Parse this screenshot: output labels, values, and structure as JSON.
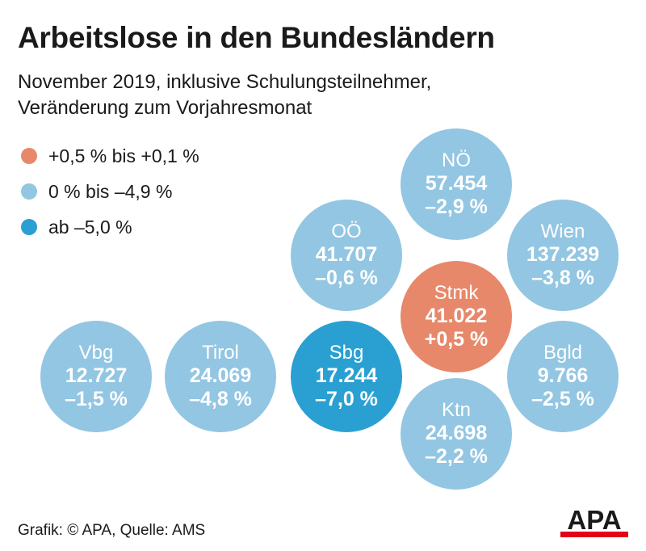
{
  "title": "Arbeitslose in den Bundesländern",
  "subtitle": {
    "line1": "November 2019, inklusive Schulungsteilnehmer,",
    "line2": "Veränderung zum Vorjahresmonat"
  },
  "legend": [
    {
      "label": "+0,5 % bis +0,1 %",
      "color": "#e8886b"
    },
    {
      "label": "0 % bis –4,9 %",
      "color": "#93c6e2"
    },
    {
      "label": "ab –5,0 %",
      "color": "#2aa0d2"
    }
  ],
  "chart_data": {
    "type": "bubble",
    "title": "Arbeitslose in den Bundesländern",
    "subtitle": "November 2019, inklusive Schulungsteilnehmer, Veränderung zum Vorjahresmonat",
    "series": [
      {
        "name": "NÖ",
        "value": 57454,
        "value_label": "57.454",
        "change": -2.9,
        "change_label": "–2,9 %",
        "category": "0 % bis –4,9 %"
      },
      {
        "name": "OÖ",
        "value": 41707,
        "value_label": "41.707",
        "change": -0.6,
        "change_label": "–0,6 %",
        "category": "0 % bis –4,9 %"
      },
      {
        "name": "Wien",
        "value": 137239,
        "value_label": "137.239",
        "change": -3.8,
        "change_label": "–3,8 %",
        "category": "0 % bis –4,9 %"
      },
      {
        "name": "Stmk",
        "value": 41022,
        "value_label": "41.022",
        "change": 0.5,
        "change_label": "+0,5 %",
        "category": "+0,5 % bis +0,1 %"
      },
      {
        "name": "Vbg",
        "value": 12727,
        "value_label": "12.727",
        "change": -1.5,
        "change_label": "–1,5 %",
        "category": "0 % bis –4,9 %"
      },
      {
        "name": "Tirol",
        "value": 24069,
        "value_label": "24.069",
        "change": -4.8,
        "change_label": "–4,8 %",
        "category": "0 % bis –4,9 %"
      },
      {
        "name": "Sbg",
        "value": 17244,
        "value_label": "17.244",
        "change": -7.0,
        "change_label": "–7,0 %",
        "category": "ab –5,0 %"
      },
      {
        "name": "Bgld",
        "value": 9766,
        "value_label": "9.766",
        "change": -2.5,
        "change_label": "–2,5 %",
        "category": "0 % bis –4,9 %"
      },
      {
        "name": "Ktn",
        "value": 24698,
        "value_label": "24.698",
        "change": -2.2,
        "change_label": "–2,2 %",
        "category": "0 % bis –4,9 %"
      }
    ]
  },
  "footer": "Grafik: © APA, Quelle: AMS",
  "logo_text": "APA",
  "colors": {
    "logo_red": "#e2001a",
    "text": "#1a1a1a"
  }
}
